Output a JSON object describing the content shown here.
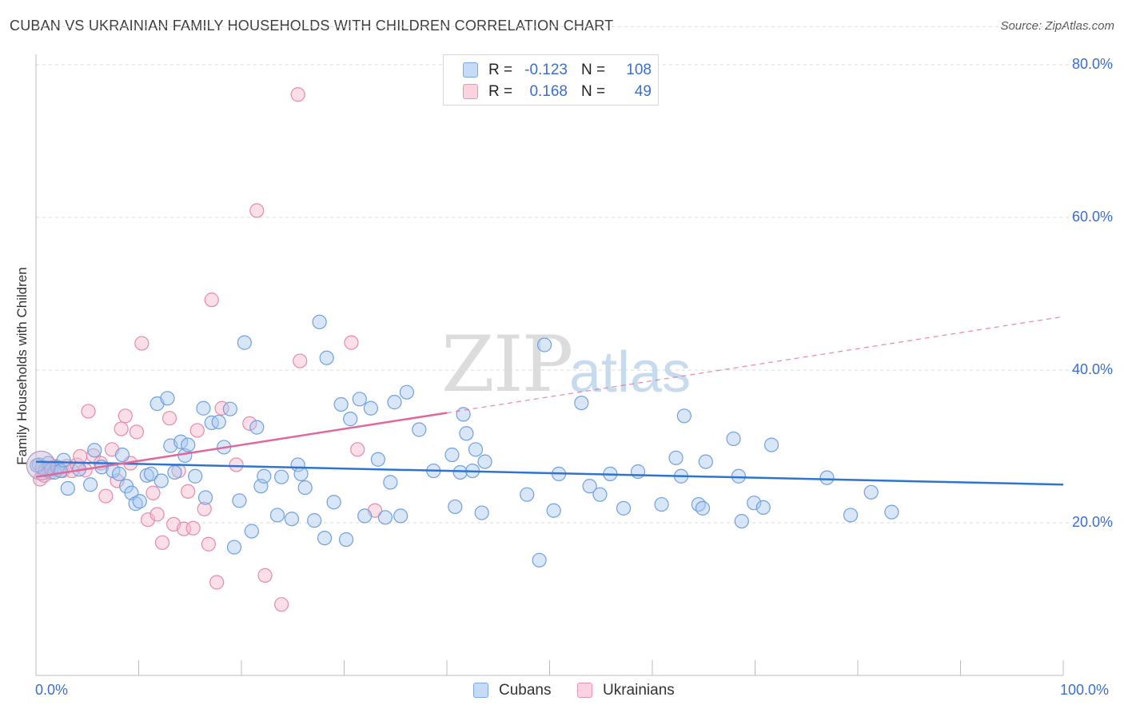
{
  "title": "CUBAN VS UKRAINIAN FAMILY HOUSEHOLDS WITH CHILDREN CORRELATION CHART",
  "source": "Source: ZipAtlas.com",
  "watermark": {
    "zip": "ZIP",
    "atlas": "atlas"
  },
  "legend_top": {
    "rows": [
      {
        "r_label": "R =",
        "r_value": "-0.123",
        "n_label": "N =",
        "n_value": "108",
        "color": "#a9c8ef"
      },
      {
        "r_label": "R =",
        "r_value": "0.168",
        "n_label": "N =",
        "n_value": "49",
        "color": "#f6b9cc"
      }
    ]
  },
  "legend_bottom": [
    {
      "label": "Cubans",
      "color": "#a9c8ef"
    },
    {
      "label": "Ukrainians",
      "color": "#f6b9cc"
    }
  ],
  "colors": {
    "cuban_fill": "#a9c8ef",
    "cuban_stroke": "#6fa0e0",
    "cuban_line": "#2f74d0",
    "ukr_fill": "#f6b9cc",
    "ukr_stroke": "#e58aa8",
    "ukr_line": "#e0689a",
    "axis_text": "#3a6fd0",
    "grid": "#d9d9d9"
  },
  "chart_data": {
    "type": "scatter",
    "title": "CUBAN VS UKRAINIAN FAMILY HOUSEHOLDS WITH CHILDREN CORRELATION CHART",
    "xlabel": "",
    "ylabel": "Family Households with Children",
    "xlim": [
      0,
      100
    ],
    "ylim": [
      0,
      85
    ],
    "x_tick_labels": [
      "0.0%",
      "100.0%"
    ],
    "y_ticks": [
      20,
      40,
      60,
      80
    ],
    "y_tick_labels": [
      "20.0%",
      "40.0%",
      "60.0%",
      "80.0%"
    ],
    "grid": true,
    "legend_position": "top-center",
    "series": [
      {
        "name": "Cubans",
        "r": -0.123,
        "n": 108,
        "trend": {
          "x": [
            0,
            100
          ],
          "y": [
            28.0,
            25.0
          ],
          "dashed_from": null
        },
        "points": [
          [
            0.3,
            27.6
          ],
          [
            0.6,
            27.2
          ],
          [
            0.9,
            26.9
          ],
          [
            1.2,
            27.8
          ],
          [
            1.5,
            27.0
          ],
          [
            1.8,
            26.6
          ],
          [
            2.1,
            27.3
          ],
          [
            2.4,
            26.8
          ],
          [
            3.1,
            24.5
          ],
          [
            4.2,
            27.0
          ],
          [
            5.3,
            25.0
          ],
          [
            5.7,
            29.5
          ],
          [
            6.4,
            27.3
          ],
          [
            7.5,
            26.8
          ],
          [
            8.1,
            26.4
          ],
          [
            8.4,
            28.9
          ],
          [
            8.8,
            24.8
          ],
          [
            9.3,
            23.9
          ],
          [
            9.7,
            22.5
          ],
          [
            10.1,
            22.8
          ],
          [
            10.8,
            26.2
          ],
          [
            11.2,
            26.4
          ],
          [
            11.8,
            35.6
          ],
          [
            12.2,
            25.5
          ],
          [
            12.8,
            36.3
          ],
          [
            13.1,
            30.1
          ],
          [
            13.5,
            26.6
          ],
          [
            14.1,
            30.6
          ],
          [
            14.5,
            28.8
          ],
          [
            14.8,
            30.2
          ],
          [
            15.5,
            26.1
          ],
          [
            16.3,
            35.0
          ],
          [
            16.5,
            23.3
          ],
          [
            17.1,
            33.1
          ],
          [
            17.8,
            33.2
          ],
          [
            18.3,
            29.9
          ],
          [
            18.9,
            34.9
          ],
          [
            19.3,
            16.8
          ],
          [
            19.8,
            22.9
          ],
          [
            20.3,
            43.6
          ],
          [
            21.0,
            18.9
          ],
          [
            21.5,
            32.5
          ],
          [
            21.9,
            24.8
          ],
          [
            22.2,
            26.1
          ],
          [
            23.5,
            21.0
          ],
          [
            23.9,
            26.0
          ],
          [
            24.9,
            20.5
          ],
          [
            25.5,
            27.6
          ],
          [
            25.8,
            26.4
          ],
          [
            26.2,
            24.6
          ],
          [
            27.1,
            20.3
          ],
          [
            27.6,
            46.3
          ],
          [
            28.1,
            18.0
          ],
          [
            28.3,
            41.6
          ],
          [
            29.0,
            22.7
          ],
          [
            29.7,
            35.5
          ],
          [
            30.2,
            17.8
          ],
          [
            30.6,
            33.6
          ],
          [
            31.5,
            36.2
          ],
          [
            32.0,
            20.9
          ],
          [
            32.6,
            35.0
          ],
          [
            33.3,
            28.3
          ],
          [
            34.0,
            20.7
          ],
          [
            34.5,
            25.3
          ],
          [
            34.9,
            35.8
          ],
          [
            35.5,
            20.9
          ],
          [
            36.1,
            37.1
          ],
          [
            37.3,
            32.2
          ],
          [
            38.7,
            26.8
          ],
          [
            40.5,
            28.9
          ],
          [
            40.8,
            22.1
          ],
          [
            41.3,
            26.6
          ],
          [
            41.6,
            34.2
          ],
          [
            41.9,
            31.7
          ],
          [
            42.5,
            26.8
          ],
          [
            42.8,
            29.6
          ],
          [
            43.4,
            21.3
          ],
          [
            43.7,
            28.0
          ],
          [
            47.8,
            23.7
          ],
          [
            49.0,
            15.1
          ],
          [
            49.5,
            43.3
          ],
          [
            50.4,
            21.6
          ],
          [
            50.9,
            26.4
          ],
          [
            53.1,
            35.7
          ],
          [
            53.9,
            24.8
          ],
          [
            54.9,
            23.7
          ],
          [
            55.9,
            26.4
          ],
          [
            57.2,
            21.9
          ],
          [
            58.6,
            26.7
          ],
          [
            60.9,
            22.4
          ],
          [
            62.3,
            28.5
          ],
          [
            62.8,
            26.1
          ],
          [
            63.1,
            34.0
          ],
          [
            64.5,
            22.4
          ],
          [
            64.9,
            21.9
          ],
          [
            65.2,
            28.0
          ],
          [
            67.9,
            31.0
          ],
          [
            68.4,
            26.1
          ],
          [
            68.7,
            20.2
          ],
          [
            69.9,
            22.6
          ],
          [
            70.8,
            22.0
          ],
          [
            71.6,
            30.2
          ],
          [
            77.0,
            25.9
          ],
          [
            79.3,
            21.0
          ],
          [
            81.3,
            24.0
          ],
          [
            83.3,
            21.4
          ],
          [
            0.1,
            27.5
          ],
          [
            2.7,
            28.2
          ]
        ]
      },
      {
        "name": "Ukrainians",
        "r": 0.168,
        "n": 49,
        "trend": {
          "x": [
            0,
            100
          ],
          "y": [
            26.0,
            47.0
          ],
          "dashed_from": 40
        },
        "points": [
          [
            0.4,
            25.7
          ],
          [
            0.8,
            26.2
          ],
          [
            1.1,
            26.9
          ],
          [
            1.4,
            26.6
          ],
          [
            1.9,
            27.4
          ],
          [
            2.2,
            27.0
          ],
          [
            2.6,
            26.8
          ],
          [
            3.0,
            27.4
          ],
          [
            3.5,
            26.8
          ],
          [
            4.0,
            27.6
          ],
          [
            4.3,
            28.7
          ],
          [
            4.8,
            26.9
          ],
          [
            5.1,
            34.6
          ],
          [
            5.6,
            28.8
          ],
          [
            6.3,
            27.8
          ],
          [
            6.8,
            23.5
          ],
          [
            7.4,
            29.6
          ],
          [
            7.9,
            25.5
          ],
          [
            8.3,
            32.3
          ],
          [
            8.7,
            34.0
          ],
          [
            9.2,
            27.8
          ],
          [
            9.8,
            31.9
          ],
          [
            10.3,
            43.5
          ],
          [
            10.9,
            20.4
          ],
          [
            11.4,
            23.9
          ],
          [
            11.8,
            21.1
          ],
          [
            12.3,
            17.4
          ],
          [
            13.0,
            33.7
          ],
          [
            13.4,
            19.8
          ],
          [
            13.9,
            26.8
          ],
          [
            14.4,
            19.2
          ],
          [
            14.8,
            24.1
          ],
          [
            15.3,
            19.3
          ],
          [
            15.7,
            32.1
          ],
          [
            16.4,
            21.8
          ],
          [
            16.8,
            17.2
          ],
          [
            17.1,
            49.2
          ],
          [
            17.6,
            12.2
          ],
          [
            18.1,
            35.0
          ],
          [
            19.5,
            27.6
          ],
          [
            20.8,
            33.0
          ],
          [
            21.5,
            60.9
          ],
          [
            22.3,
            13.1
          ],
          [
            23.9,
            9.3
          ],
          [
            25.5,
            76.1
          ],
          [
            25.7,
            41.2
          ],
          [
            30.7,
            43.6
          ],
          [
            31.3,
            29.6
          ],
          [
            33.0,
            21.6
          ]
        ]
      }
    ]
  }
}
